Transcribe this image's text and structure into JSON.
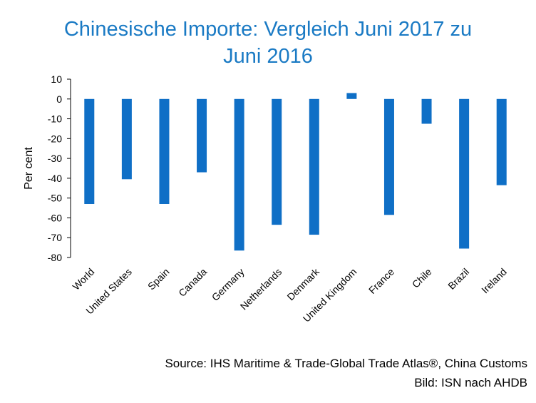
{
  "chart_data": {
    "type": "bar",
    "title_line1": "Chinesische Importe: Vergleich Juni 2017 zu",
    "title_line2": "Juni 2016",
    "ylabel": "Per cent",
    "xlabel": "",
    "categories": [
      "World",
      "United States",
      "Spain",
      "Canada",
      "Germany",
      "Netherlands",
      "Denmark",
      "United Kingdom",
      "France",
      "Chile",
      "Brazil",
      "Ireland"
    ],
    "values": [
      -53,
      -40.5,
      -53,
      -37,
      -76.5,
      -63.5,
      -68.5,
      3,
      -58.5,
      -12.5,
      -75.5,
      -43.5
    ],
    "ylim": [
      -80,
      10
    ],
    "yticks": [
      "10",
      "0",
      "-10",
      "-20",
      "-30",
      "-40",
      "-50",
      "-60",
      "-70",
      "-80"
    ],
    "grid": false,
    "bar_color": "#0f6fc6",
    "title_color": "#1a7ac4"
  },
  "source": "Source:  IHS Maritime & Trade-Global Trade Atlas®, China Customs",
  "credit": "Bild: ISN nach AHDB"
}
